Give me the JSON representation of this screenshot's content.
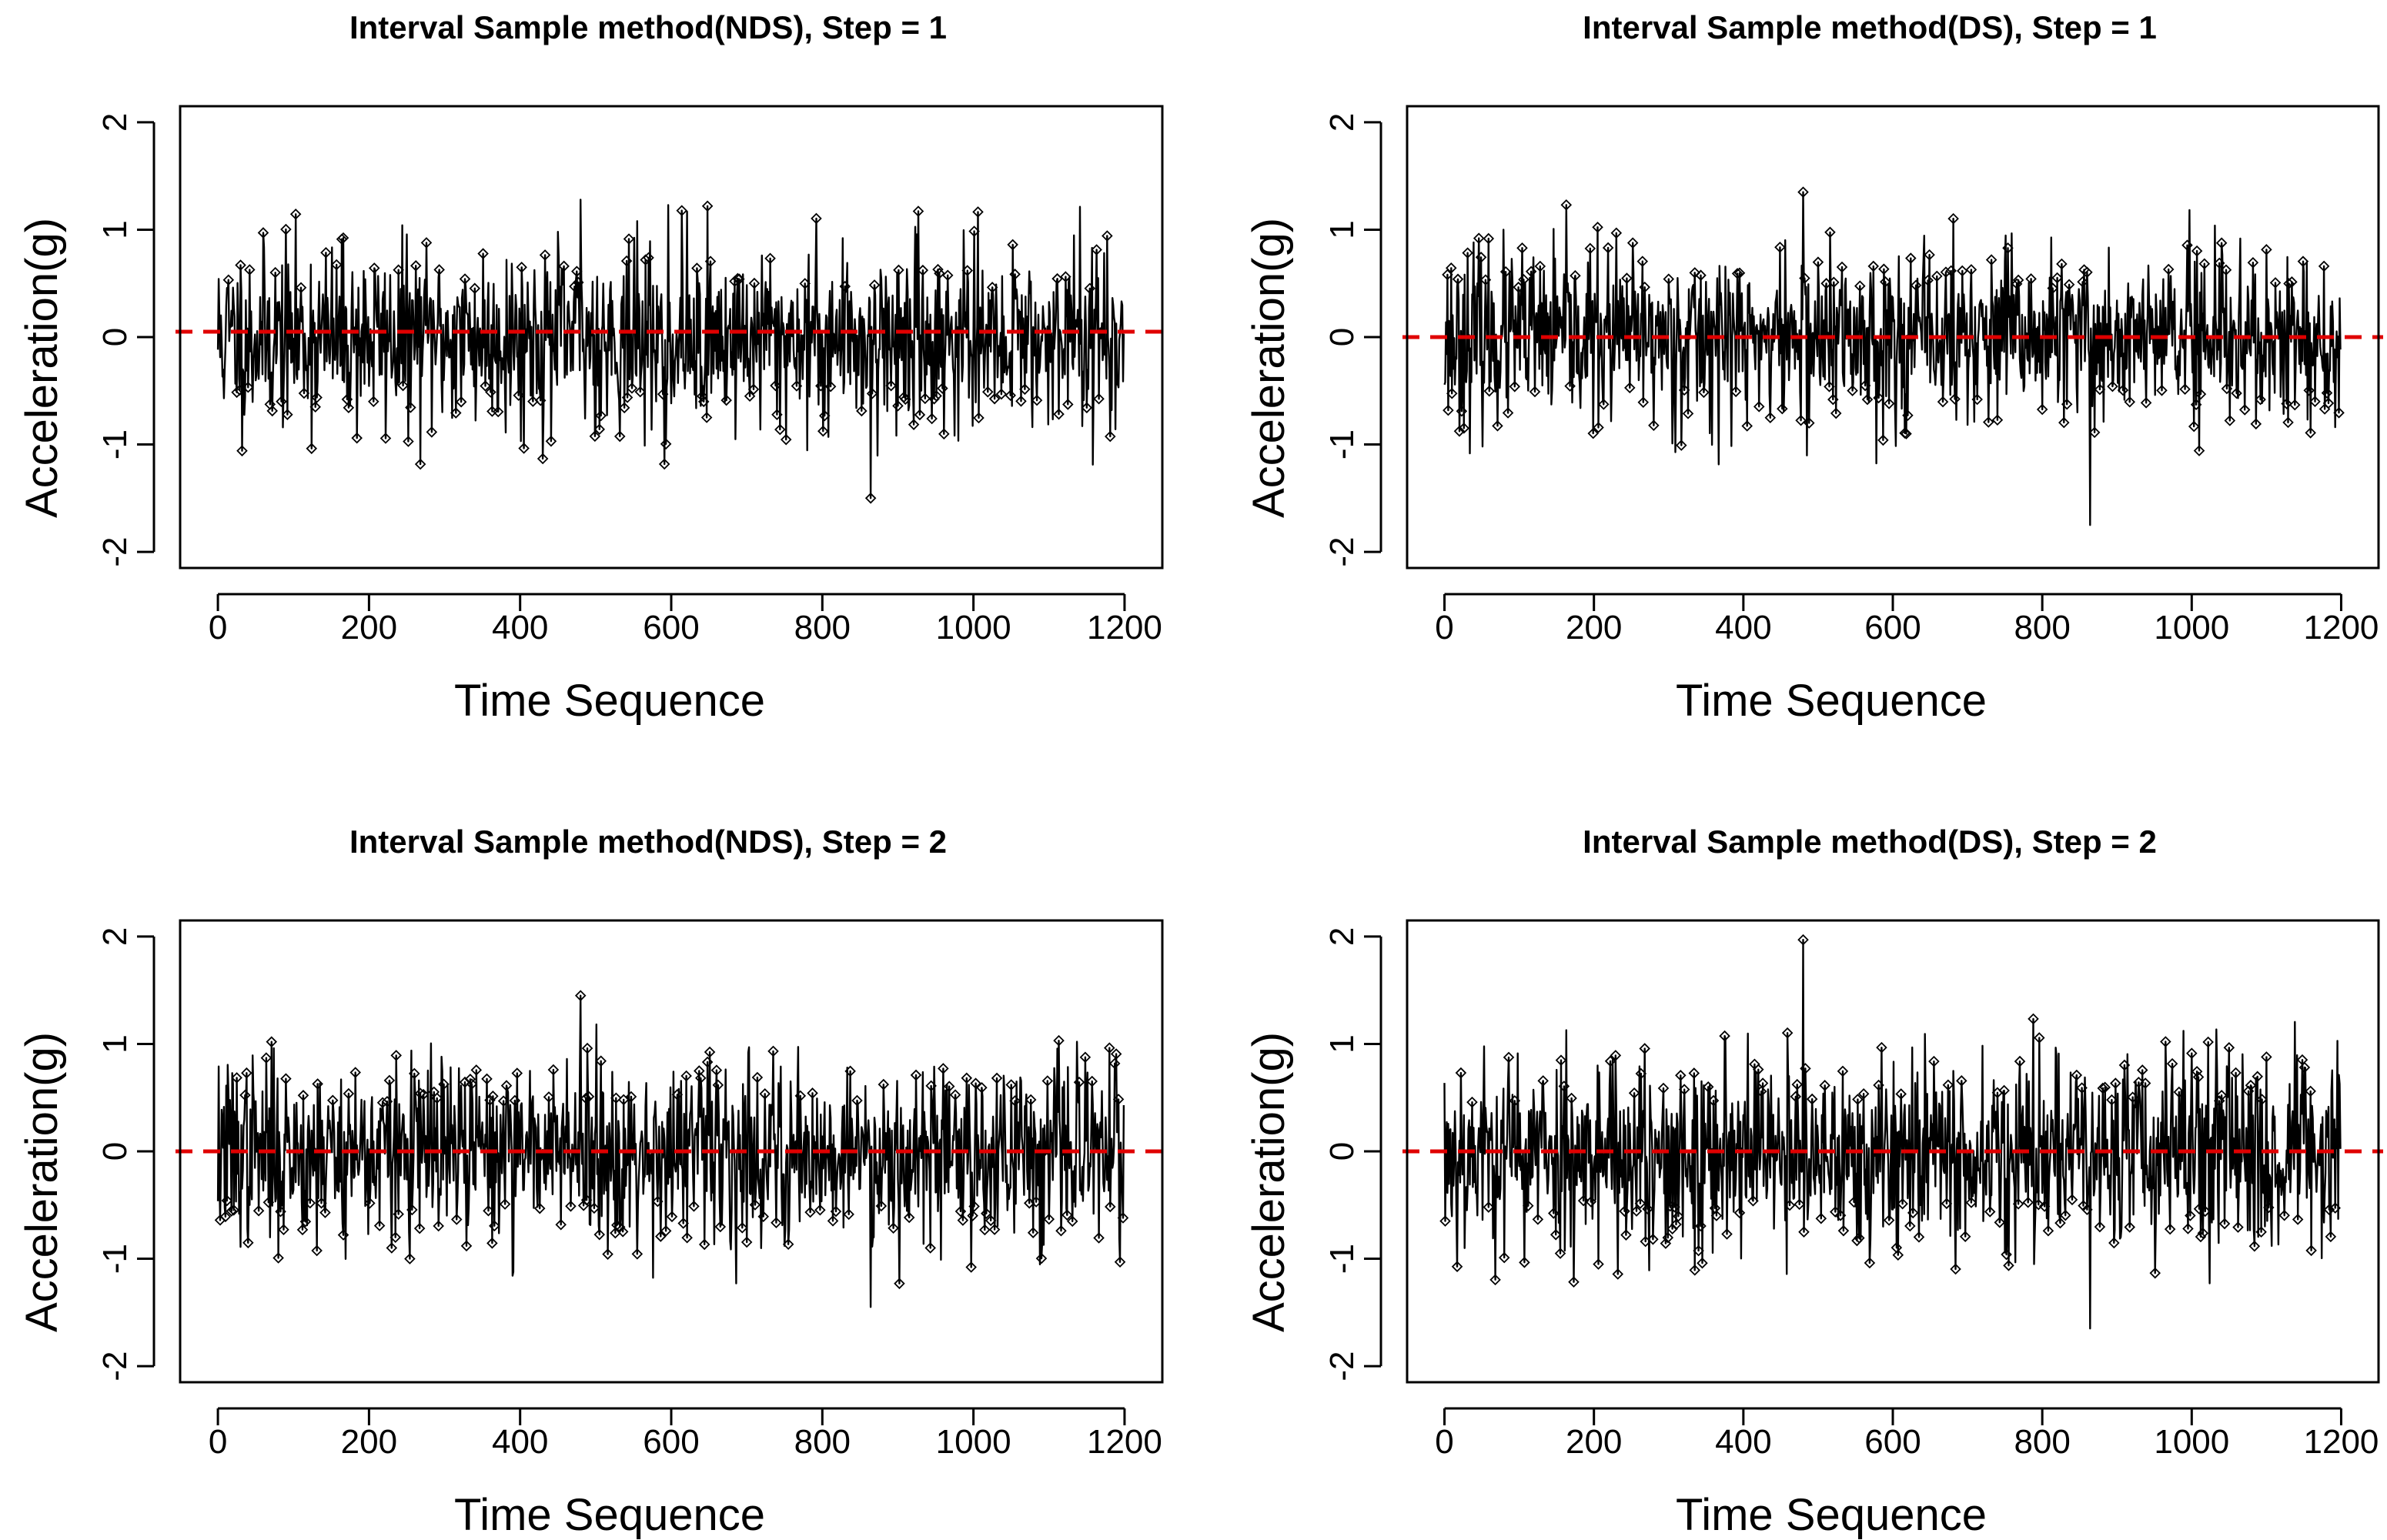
{
  "figure": {
    "ref_color": "#e00000",
    "line_color": "#000000"
  },
  "chart_data": [
    {
      "type": "line",
      "title": "Interval Sample method(NDS), Step = 1",
      "xlabel": "Time Sequence",
      "ylabel": "Acceleration(g)",
      "xlim": [
        -50,
        1250
      ],
      "ylim": [
        -2.15,
        2.15
      ],
      "xticks": [
        "0",
        "200",
        "400",
        "600",
        "800",
        "1000",
        "1200"
      ],
      "yticks": [
        "-2",
        "-1",
        "0",
        "1",
        "2"
      ],
      "n_points": 1200,
      "series": [
        {
          "name": "acceleration",
          "marker": "diamond-open",
          "line": "solid",
          "seed": 11,
          "amplitude": 0.42,
          "mean": 0.0
        }
      ],
      "reference_line": {
        "y": 0.05,
        "style": "dashed",
        "color": "#e00000"
      },
      "annotated_extremes": {
        "max": 1.28,
        "min": -1.5
      }
    },
    {
      "type": "line",
      "title": "Interval Sample method(DS), Step = 1",
      "xlabel": "Time Sequence",
      "ylabel": "Acceleration(g)",
      "xlim": [
        -50,
        1250
      ],
      "ylim": [
        -2.15,
        2.15
      ],
      "xticks": [
        "0",
        "200",
        "400",
        "600",
        "800",
        "1000",
        "1200"
      ],
      "yticks": [
        "-2",
        "-1",
        "0",
        "1",
        "2"
      ],
      "n_points": 1200,
      "series": [
        {
          "name": "acceleration",
          "marker": "diamond-open",
          "line": "solid",
          "seed": 23,
          "amplitude": 0.4,
          "mean": 0.0
        }
      ],
      "reference_line": {
        "y": 0.0,
        "style": "dashed",
        "color": "#e00000"
      },
      "annotated_extremes": {
        "max": 1.35,
        "min": -1.75
      }
    },
    {
      "type": "line",
      "title": "Interval Sample method(NDS), Step = 2",
      "xlabel": "Time Sequence",
      "ylabel": "Acceleration(g)",
      "xlim": [
        -50,
        1250
      ],
      "ylim": [
        -2.15,
        2.15
      ],
      "xticks": [
        "0",
        "200",
        "400",
        "600",
        "800",
        "1000",
        "1200"
      ],
      "yticks": [
        "-2",
        "-1",
        "0",
        "1",
        "2"
      ],
      "n_points": 1200,
      "series": [
        {
          "name": "acceleration",
          "marker": "diamond-open",
          "line": "solid",
          "seed": 37,
          "amplitude": 0.42,
          "mean": 0.0
        }
      ],
      "reference_line": {
        "y": 0.0,
        "style": "dashed",
        "color": "#e00000"
      },
      "annotated_extremes": {
        "max": 1.45,
        "min": -1.45
      }
    },
    {
      "type": "line",
      "title": "Interval Sample method(DS), Step = 2",
      "xlabel": "Time Sequence",
      "ylabel": "Acceleration(g)",
      "xlim": [
        -50,
        1250
      ],
      "ylim": [
        -2.15,
        2.15
      ],
      "xticks": [
        "0",
        "200",
        "400",
        "600",
        "800",
        "1000",
        "1200"
      ],
      "yticks": [
        "-2",
        "-1",
        "0",
        "1",
        "2"
      ],
      "n_points": 1200,
      "series": [
        {
          "name": "acceleration",
          "marker": "diamond-open",
          "line": "solid",
          "seed": 53,
          "amplitude": 0.45,
          "mean": 0.0
        }
      ],
      "reference_line": {
        "y": 0.0,
        "style": "dashed",
        "color": "#e00000"
      },
      "annotated_extremes": {
        "max": 1.97,
        "min": -1.65
      }
    }
  ]
}
